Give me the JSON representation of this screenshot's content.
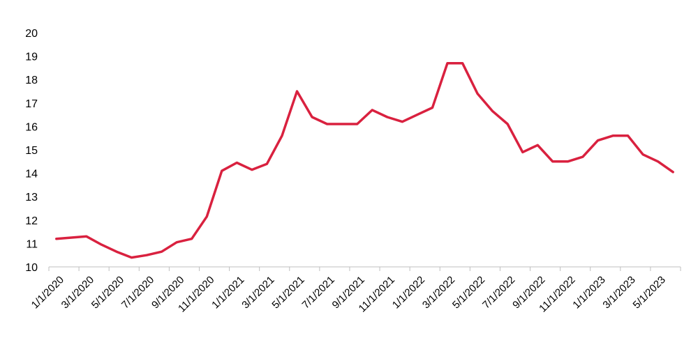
{
  "chart_data": {
    "type": "line",
    "title": "",
    "xlabel": "",
    "ylabel": "",
    "ylim": [
      10,
      20
    ],
    "y_ticks": [
      10,
      11,
      12,
      13,
      14,
      15,
      16,
      17,
      18,
      19,
      20
    ],
    "x_tick_labels": [
      "1/1/2020",
      "3/1/2020",
      "5/1/2020",
      "7/1/2020",
      "9/1/2020",
      "11/1/2020",
      "1/1/2021",
      "3/1/2021",
      "5/1/2021",
      "7/1/2021",
      "9/1/2021",
      "11/1/2021",
      "1/1/2022",
      "3/1/2022",
      "5/1/2022",
      "7/1/2022",
      "9/1/2022",
      "11/1/2022",
      "1/1/2023",
      "3/1/2023",
      "5/1/2023"
    ],
    "grid": false,
    "legend": "none",
    "line_color": "#d9213f",
    "categories": [
      "1/1/2020",
      "2/1/2020",
      "3/1/2020",
      "4/1/2020",
      "5/1/2020",
      "6/1/2020",
      "7/1/2020",
      "8/1/2020",
      "9/1/2020",
      "10/1/2020",
      "11/1/2020",
      "12/1/2020",
      "1/1/2021",
      "2/1/2021",
      "3/1/2021",
      "4/1/2021",
      "5/1/2021",
      "6/1/2021",
      "7/1/2021",
      "8/1/2021",
      "9/1/2021",
      "10/1/2021",
      "11/1/2021",
      "12/1/2021",
      "1/1/2022",
      "2/1/2022",
      "3/1/2022",
      "4/1/2022",
      "5/1/2022",
      "6/1/2022",
      "7/1/2022",
      "8/1/2022",
      "9/1/2022",
      "10/1/2022",
      "11/1/2022",
      "12/1/2022",
      "1/1/2023",
      "2/1/2023",
      "3/1/2023",
      "4/1/2023",
      "5/1/2023",
      "6/1/2023"
    ],
    "series": [
      {
        "values": [
          11.2,
          11.25,
          11.3,
          10.95,
          10.65,
          10.4,
          10.5,
          10.65,
          11.05,
          11.2,
          12.15,
          14.1,
          14.45,
          14.15,
          14.4,
          15.6,
          17.5,
          16.4,
          16.1,
          16.1,
          16.1,
          16.7,
          16.4,
          16.2,
          16.5,
          16.8,
          18.7,
          18.7,
          17.4,
          16.65,
          16.1,
          14.9,
          15.2,
          14.5,
          14.5,
          14.7,
          15.4,
          15.6,
          15.6,
          14.8,
          14.5,
          14.05
        ]
      }
    ]
  }
}
